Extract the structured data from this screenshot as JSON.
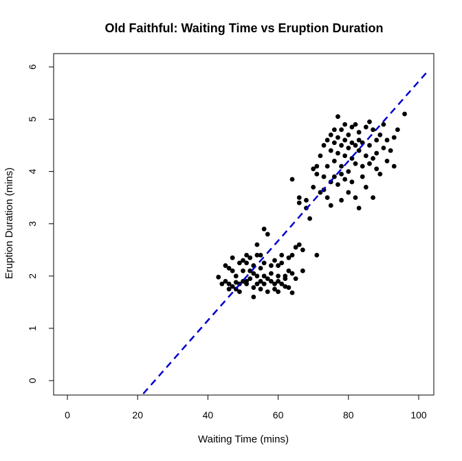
{
  "chart_data": {
    "type": "scatter",
    "title": "Old Faithful: Waiting Time vs Eruption Duration",
    "xlabel": "Waiting Time (mins)",
    "ylabel": "Eruption Duration (mins)",
    "xlim": [
      0,
      100
    ],
    "ylim": [
      0,
      6
    ],
    "xticks": [
      "0",
      "20",
      "40",
      "60",
      "80",
      "100"
    ],
    "yticks": [
      "0",
      "1",
      "2",
      "3",
      "4",
      "5",
      "6"
    ],
    "grid": false,
    "point_color": "#000000",
    "line_color": "#0000cc",
    "trend_line": {
      "style": "dashed",
      "from": [
        21.6,
        -0.25
      ],
      "to": [
        103.0,
        5.95
      ]
    },
    "points": [
      [
        43,
        1.98
      ],
      [
        44,
        1.85
      ],
      [
        45,
        2.2
      ],
      [
        45,
        1.9
      ],
      [
        46,
        1.75
      ],
      [
        46,
        2.15
      ],
      [
        46,
        1.85
      ],
      [
        47,
        2.1
      ],
      [
        47,
        1.8
      ],
      [
        47,
        2.35
      ],
      [
        48,
        1.75
      ],
      [
        48,
        1.88
      ],
      [
        48,
        2.0
      ],
      [
        49,
        2.25
      ],
      [
        49,
        1.85
      ],
      [
        49,
        1.7
      ],
      [
        50,
        1.9
      ],
      [
        50,
        2.1
      ],
      [
        50,
        2.3
      ],
      [
        51,
        1.85
      ],
      [
        51,
        2.25
      ],
      [
        51,
        2.4
      ],
      [
        51,
        1.9
      ],
      [
        52,
        1.95
      ],
      [
        52,
        2.1
      ],
      [
        52,
        2.35
      ],
      [
        53,
        1.78
      ],
      [
        53,
        2.05
      ],
      [
        53,
        2.2
      ],
      [
        53,
        1.6
      ],
      [
        54,
        2.6
      ],
      [
        54,
        2.0
      ],
      [
        54,
        1.85
      ],
      [
        54,
        2.4
      ],
      [
        55,
        1.9
      ],
      [
        55,
        2.15
      ],
      [
        55,
        1.75
      ],
      [
        55,
        2.4
      ],
      [
        56,
        2.9
      ],
      [
        56,
        2.25
      ],
      [
        56,
        2.0
      ],
      [
        56,
        1.85
      ],
      [
        57,
        2.8
      ],
      [
        57,
        1.95
      ],
      [
        57,
        1.7
      ],
      [
        58,
        2.05
      ],
      [
        58,
        1.9
      ],
      [
        58,
        2.2
      ],
      [
        59,
        1.85
      ],
      [
        59,
        1.75
      ],
      [
        59,
        2.3
      ],
      [
        60,
        2.2
      ],
      [
        60,
        1.9
      ],
      [
        60,
        2.0
      ],
      [
        60,
        1.7
      ],
      [
        61,
        2.25
      ],
      [
        61,
        2.4
      ],
      [
        61,
        1.85
      ],
      [
        62,
        2.0
      ],
      [
        62,
        1.8
      ],
      [
        62,
        1.95
      ],
      [
        63,
        2.1
      ],
      [
        63,
        2.35
      ],
      [
        63,
        1.78
      ],
      [
        64,
        2.05
      ],
      [
        64,
        1.68
      ],
      [
        64,
        3.85
      ],
      [
        64,
        2.4
      ],
      [
        65,
        2.55
      ],
      [
        65,
        1.95
      ],
      [
        66,
        2.6
      ],
      [
        66,
        3.4
      ],
      [
        66,
        3.5
      ],
      [
        67,
        2.5
      ],
      [
        67,
        2.1
      ],
      [
        68,
        3.45
      ],
      [
        68,
        3.3
      ],
      [
        69,
        3.1
      ],
      [
        70,
        4.05
      ],
      [
        70,
        3.7
      ],
      [
        71,
        3.95
      ],
      [
        71,
        4.1
      ],
      [
        71,
        2.4
      ],
      [
        72,
        3.6
      ],
      [
        72,
        4.3
      ],
      [
        73,
        3.65
      ],
      [
        73,
        4.5
      ],
      [
        73,
        3.9
      ],
      [
        74,
        4.6
      ],
      [
        74,
        3.5
      ],
      [
        74,
        4.1
      ],
      [
        75,
        4.4
      ],
      [
        75,
        3.8
      ],
      [
        75,
        4.7
      ],
      [
        75,
        3.35
      ],
      [
        76,
        4.8
      ],
      [
        76,
        4.2
      ],
      [
        76,
        4.55
      ],
      [
        76,
        3.9
      ],
      [
        77,
        5.05
      ],
      [
        77,
        4.35
      ],
      [
        77,
        3.75
      ],
      [
        77,
        4.65
      ],
      [
        78,
        4.8
      ],
      [
        78,
        4.1
      ],
      [
        78,
        3.95
      ],
      [
        78,
        4.5
      ],
      [
        78,
        3.45
      ],
      [
        79,
        4.3
      ],
      [
        79,
        4.6
      ],
      [
        79,
        4.9
      ],
      [
        79,
        3.85
      ],
      [
        80,
        4.45
      ],
      [
        80,
        4.0
      ],
      [
        80,
        4.7
      ],
      [
        80,
        3.6
      ],
      [
        81,
        4.25
      ],
      [
        81,
        4.85
      ],
      [
        81,
        3.8
      ],
      [
        81,
        4.55
      ],
      [
        82,
        4.5
      ],
      [
        82,
        4.15
      ],
      [
        82,
        4.9
      ],
      [
        82,
        3.5
      ],
      [
        83,
        4.4
      ],
      [
        83,
        4.75
      ],
      [
        83,
        3.3
      ],
      [
        83,
        4.6
      ],
      [
        84,
        4.1
      ],
      [
        84,
        4.55
      ],
      [
        84,
        3.9
      ],
      [
        85,
        4.3
      ],
      [
        85,
        4.85
      ],
      [
        85,
        3.7
      ],
      [
        86,
        4.5
      ],
      [
        86,
        4.15
      ],
      [
        86,
        4.95
      ],
      [
        87,
        4.25
      ],
      [
        87,
        3.5
      ],
      [
        87,
        4.8
      ],
      [
        88,
        4.6
      ],
      [
        88,
        4.35
      ],
      [
        88,
        4.05
      ],
      [
        89,
        4.7
      ],
      [
        89,
        3.95
      ],
      [
        90,
        4.45
      ],
      [
        90,
        4.9
      ],
      [
        91,
        4.2
      ],
      [
        91,
        4.6
      ],
      [
        92,
        4.4
      ],
      [
        93,
        4.1
      ],
      [
        93,
        4.65
      ],
      [
        94,
        4.8
      ],
      [
        96,
        5.1
      ]
    ]
  }
}
